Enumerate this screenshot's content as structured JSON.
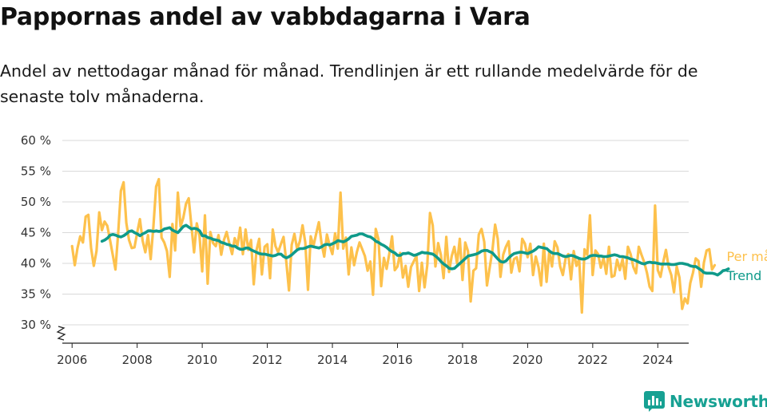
{
  "header": {
    "title": "Pappornas andel av vabbdagarna i Vara",
    "subtitle": "Andel av nettodagar månad för månad. Trendlinjen är ett rullande medelvärde för de senaste tolv månaderna."
  },
  "brand": {
    "name": "Newsworthy",
    "icon": "newsworthy-logo-icon",
    "color": "#17a193"
  },
  "chart_data": {
    "type": "line",
    "title": "Pappornas andel av vabbdagarna i Vara",
    "subtitle": "Andel av nettodagar månad för månad. Trendlinjen är ett rullande medelvärde för de senaste tolv månaderna.",
    "ylim": [
      30,
      60
    ],
    "y_ticks": [
      "30 %",
      "35 %",
      "40 %",
      "45 %",
      "50 %",
      "55 %",
      "60 %"
    ],
    "y_tick_values": [
      30,
      35,
      40,
      45,
      50,
      55,
      60
    ],
    "x_ticks": [
      "2006",
      "2008",
      "2010",
      "2012",
      "2014",
      "2016",
      "2018",
      "2020",
      "2022",
      "2024"
    ],
    "x_tick_values": [
      2006,
      2008,
      2010,
      2012,
      2014,
      2016,
      2018,
      2020,
      2022,
      2024
    ],
    "xlim": [
      2005.7,
      2024.95
    ],
    "grid": true,
    "axis_break": true,
    "legend_placement": "right, at line ends",
    "series": [
      {
        "name": "Per månad",
        "color": "#fdc14c",
        "start": 2006.0,
        "step": 0.08333,
        "values": [
          42.8,
          39.7,
          42.5,
          44.4,
          43.4,
          47.6,
          47.9,
          42.5,
          39.6,
          42.0,
          48.3,
          45.4,
          46.8,
          46.1,
          43.8,
          41.4,
          39.0,
          44.9,
          51.8,
          53.2,
          46.6,
          43.8,
          42.5,
          42.6,
          45.0,
          47.2,
          43.7,
          41.8,
          44.6,
          40.7,
          46.0,
          52.5,
          53.7,
          44.2,
          43.4,
          42.0,
          37.8,
          46.4,
          42.1,
          51.5,
          46.0,
          47.4,
          49.7,
          50.6,
          46.2,
          41.8,
          46.5,
          44.5,
          38.7,
          47.8,
          36.7,
          45.1,
          43.3,
          42.8,
          44.6,
          41.4,
          43.8,
          45.1,
          43.2,
          41.5,
          44.1,
          42.9,
          45.8,
          41.5,
          45.5,
          42.2,
          43.8,
          36.6,
          42.1,
          44.0,
          38.2,
          42.7,
          43.1,
          37.6,
          45.5,
          42.8,
          41.8,
          43.1,
          44.3,
          40.3,
          35.6,
          43.0,
          44.8,
          42.3,
          43.6,
          46.2,
          43.4,
          35.7,
          44.4,
          42.8,
          44.8,
          46.7,
          43.3,
          41.1,
          44.7,
          42.9,
          41.5,
          44.9,
          42.4,
          51.5,
          42.4,
          44.2,
          38.2,
          42.6,
          39.7,
          41.8,
          43.4,
          42.3,
          41.2,
          38.8,
          40.3,
          34.9,
          45.6,
          43.9,
          36.3,
          40.9,
          39.1,
          41.6,
          44.4,
          38.9,
          39.5,
          41.7,
          37.7,
          39.6,
          36.2,
          39.4,
          40.3,
          41.2,
          35.5,
          40.1,
          36.1,
          39.7,
          48.2,
          46.2,
          39.5,
          43.3,
          41.4,
          37.6,
          44.3,
          38.6,
          41.2,
          42.7,
          40.0,
          44.0,
          37.3,
          43.4,
          42.0,
          33.8,
          38.8,
          39.2,
          44.7,
          45.6,
          43.5,
          36.4,
          39.3,
          42.1,
          46.3,
          44.0,
          37.8,
          41.4,
          42.7,
          43.6,
          38.5,
          40.7,
          41.0,
          38.7,
          44.0,
          43.2,
          41.0,
          43.2,
          38.1,
          41.1,
          39.4,
          36.4,
          43.2,
          37.0,
          42.0,
          39.5,
          43.6,
          42.6,
          39.5,
          38.1,
          40.8,
          41.5,
          37.4,
          42.0,
          39.6,
          40.7,
          32.0,
          42.3,
          41.4,
          47.8,
          38.1,
          42.1,
          41.5,
          39.3,
          40.9,
          38.3,
          42.7,
          37.8,
          38.0,
          40.6,
          38.9,
          40.7,
          37.5,
          42.7,
          41.5,
          39.4,
          38.4,
          42.7,
          41.4,
          40.2,
          38.5,
          36.2,
          35.5,
          49.4,
          38.9,
          37.8,
          40.2,
          42.2,
          39.4,
          38.1,
          35.3,
          39.5,
          37.7,
          32.6,
          34.3,
          33.5,
          36.8,
          38.5,
          40.8,
          40.4,
          36.2,
          40.1,
          42.1,
          42.3,
          39.0,
          39.7
        ]
      },
      {
        "name": "Trend",
        "color": "#0f9a8a",
        "start": 2006.92,
        "step": 0.08333,
        "values": [
          43.6,
          43.8,
          44.1,
          44.6,
          44.7,
          44.6,
          44.4,
          44.3,
          44.5,
          44.8,
          45.2,
          45.3,
          45.0,
          44.8,
          44.5,
          44.8,
          45.0,
          45.3,
          45.3,
          45.2,
          45.3,
          45.2,
          45.3,
          45.6,
          45.7,
          45.8,
          45.4,
          45.2,
          45.0,
          45.5,
          46.0,
          46.2,
          45.9,
          45.6,
          45.7,
          45.6,
          45.3,
          44.5,
          44.5,
          44.2,
          44.1,
          43.9,
          43.8,
          43.7,
          43.4,
          43.3,
          43.1,
          43.0,
          42.8,
          42.8,
          42.5,
          42.3,
          42.3,
          42.5,
          42.5,
          42.2,
          42.0,
          41.8,
          41.6,
          41.5,
          41.5,
          41.4,
          41.3,
          41.2,
          41.3,
          41.5,
          41.5,
          41.1,
          40.9,
          41.1,
          41.4,
          41.8,
          42.2,
          42.4,
          42.4,
          42.5,
          42.7,
          42.8,
          42.7,
          42.6,
          42.5,
          42.7,
          43.0,
          43.1,
          43.0,
          43.2,
          43.4,
          43.7,
          43.6,
          43.5,
          43.7,
          44.0,
          44.4,
          44.5,
          44.6,
          44.8,
          44.8,
          44.6,
          44.4,
          44.3,
          44.0,
          43.6,
          43.4,
          43.1,
          42.9,
          42.6,
          42.2,
          41.9,
          41.7,
          41.3,
          41.3,
          41.6,
          41.6,
          41.7,
          41.5,
          41.3,
          41.4,
          41.6,
          41.8,
          41.7,
          41.7,
          41.6,
          41.5,
          41.2,
          40.8,
          40.3,
          39.9,
          39.6,
          39.2,
          39.1,
          39.2,
          39.6,
          40.0,
          40.4,
          40.8,
          41.2,
          41.3,
          41.4,
          41.5,
          41.7,
          42.0,
          42.1,
          42.1,
          41.9,
          41.7,
          41.2,
          40.7,
          40.3,
          40.2,
          40.4,
          40.9,
          41.3,
          41.6,
          41.7,
          41.8,
          41.8,
          41.7,
          41.6,
          41.8,
          42.0,
          42.3,
          42.7,
          42.6,
          42.5,
          42.4,
          42.0,
          41.7,
          41.6,
          41.6,
          41.4,
          41.2,
          41.1,
          41.2,
          41.3,
          41.2,
          41.0,
          40.8,
          40.7,
          40.7,
          40.9,
          41.2,
          41.3,
          41.3,
          41.2,
          41.2,
          41.1,
          41.1,
          41.2,
          41.3,
          41.4,
          41.3,
          41.1,
          41.1,
          41.0,
          40.9,
          40.7,
          40.6,
          40.4,
          40.2,
          40.0,
          39.9,
          40.1,
          40.2,
          40.1,
          40.1,
          40.0,
          39.9,
          39.9,
          39.9,
          39.9,
          39.8,
          39.8,
          39.9,
          40.0,
          40.0,
          39.9,
          39.8,
          39.6,
          39.5,
          39.5,
          39.2,
          38.9,
          38.5,
          38.4,
          38.4,
          38.4,
          38.3,
          38.1,
          38.4,
          38.8,
          38.9,
          39.1
        ]
      }
    ]
  }
}
